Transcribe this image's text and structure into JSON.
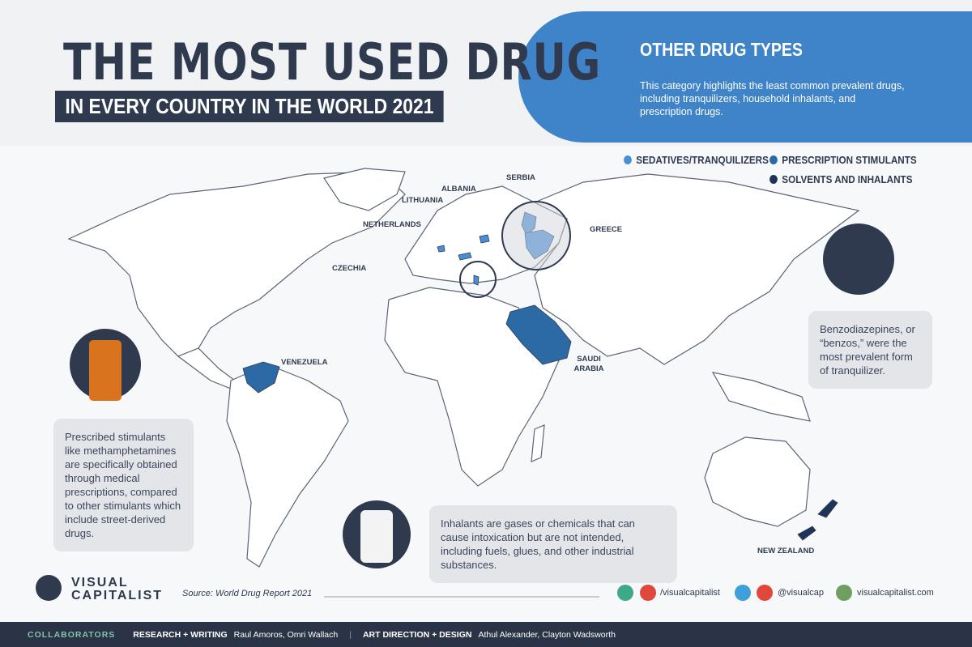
{
  "header": {
    "title": "THE MOST USED DRUG",
    "subtitle": "IN EVERY COUNTRY IN THE WORLD 2021"
  },
  "panel": {
    "heading": "OTHER DRUG TYPES",
    "text": "This category highlights the least common prevalent drugs, including tranquilizers, household inhalants, and prescription drugs."
  },
  "legend": [
    {
      "label": "SEDATIVES/TRANQUILIZERS",
      "color": "#4a8fd6"
    },
    {
      "label": "PRESCRIPTION STIMULANTS",
      "color": "#2c6aa6"
    },
    {
      "label": "SOLVENTS AND INHALANTS",
      "color": "#1c3558"
    }
  ],
  "countries": [
    {
      "label": "SERBIA",
      "color": "#4a8fd6"
    },
    {
      "label": "ALBANIA",
      "color": "#4a8fd6"
    },
    {
      "label": "LITHUANIA",
      "color": "#4a8fd6"
    },
    {
      "label": "NETHERLANDS",
      "color": "#4a8fd6"
    },
    {
      "label": "CZECHIA",
      "color": "#4a8fd6"
    },
    {
      "label": "GREECE",
      "color": "#4a8fd6"
    },
    {
      "label": "VENEZUELA",
      "color": "#2c6aa6"
    },
    {
      "label": "SAUDI ARABIA",
      "color": "#2c6aa6"
    },
    {
      "label": "NEW ZEALAND",
      "color": "#1c3558"
    }
  ],
  "notes": {
    "benzos": "Benzodiazepines, or “benzos,” were the most prevalent form of tranquilizer.",
    "stimulants": "Prescribed stimulants like methamphetamines are specifically obtained through medical prescriptions, compared to other stimulants which include street-derived drugs.",
    "inhalants": "Inhalants are gases or chemicals that can cause intoxication but are not intended, including fuels, glues, and other industrial substances."
  },
  "source": "Source: World Drug Report 2021",
  "logo": "VISUAL CAPITALIST",
  "social": [
    "/visualcapitalist",
    "@visualcap",
    "visualcapitalist.com"
  ],
  "footer": {
    "label": "COLLABORATORS",
    "research_title": "RESEARCH + WRITING",
    "research": "Raul Amoros, Omri Wallach",
    "design_title": "ART DIRECTION + DESIGN",
    "design": "Athul Alexander, Clayton Wadsworth"
  }
}
